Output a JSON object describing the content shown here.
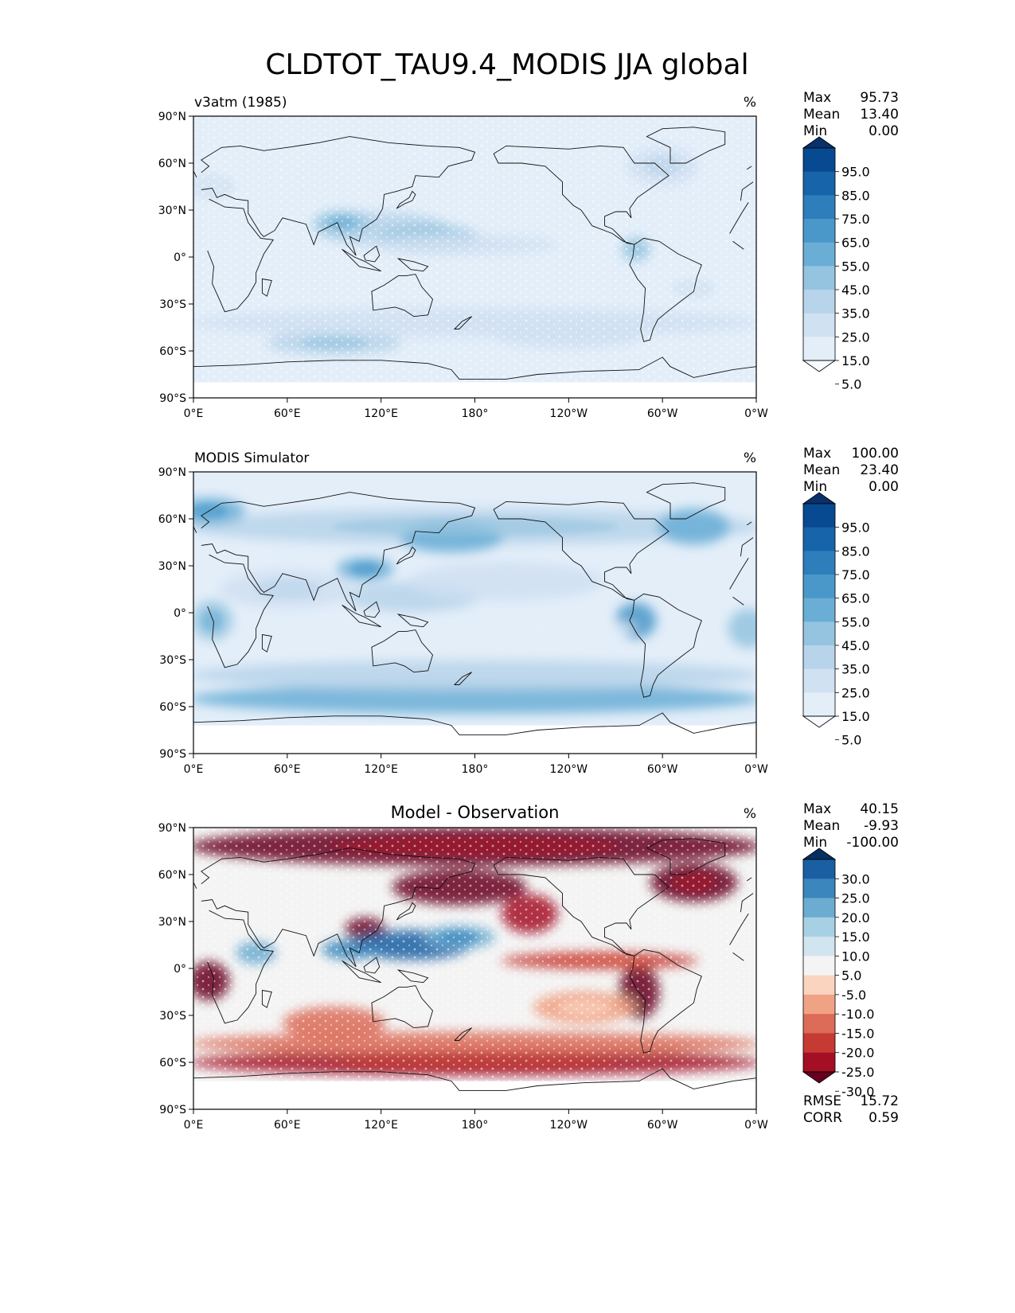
{
  "title": "CLDTOT_TAU9.4_MODIS JJA global",
  "lat_labels": [
    "90°N",
    "60°N",
    "30°N",
    "0°",
    "30°S",
    "60°S",
    "90°S"
  ],
  "lon_labels": [
    "0°E",
    "60°E",
    "120°E",
    "180°",
    "120°W",
    "60°W",
    "0°W"
  ],
  "panels": [
    {
      "id": "model",
      "left_title": "v3atm (1985)",
      "center_title": "",
      "units": "%",
      "stats": [
        {
          "label": "Max",
          "value": "95.73"
        },
        {
          "label": "Mean",
          "value": "13.40"
        },
        {
          "label": "Min",
          "value": "0.00"
        }
      ],
      "colorbar": {
        "ticks": [
          "95.0",
          "85.0",
          "75.0",
          "65.0",
          "55.0",
          "45.0",
          "35.0",
          "25.0",
          "15.0",
          "5.0"
        ],
        "colors": [
          "#f7fbff",
          "#e3eef9",
          "#d0e1f2",
          "#b7d4ea",
          "#94c4df",
          "#6aaed6",
          "#4a98c9",
          "#2e7ebc",
          "#1764ab",
          "#084a91",
          "#08306b"
        ]
      },
      "extra_stats": []
    },
    {
      "id": "obs",
      "left_title": "MODIS Simulator",
      "center_title": "",
      "units": "%",
      "stats": [
        {
          "label": "Max",
          "value": "100.00"
        },
        {
          "label": "Mean",
          "value": "23.40"
        },
        {
          "label": "Min",
          "value": "0.00"
        }
      ],
      "colorbar": {
        "ticks": [
          "95.0",
          "85.0",
          "75.0",
          "65.0",
          "55.0",
          "45.0",
          "35.0",
          "25.0",
          "15.0",
          "5.0"
        ],
        "colors": [
          "#f7fbff",
          "#e3eef9",
          "#d0e1f2",
          "#b7d4ea",
          "#94c4df",
          "#6aaed6",
          "#4a98c9",
          "#2e7ebc",
          "#1764ab",
          "#084a91",
          "#08306b"
        ]
      },
      "extra_stats": []
    },
    {
      "id": "diff",
      "left_title": "",
      "center_title": "Model - Observation",
      "units": "%",
      "stats": [
        {
          "label": "Max",
          "value": "40.15"
        },
        {
          "label": "Mean",
          "value": "-9.93"
        },
        {
          "label": "Min",
          "value": "-100.00"
        }
      ],
      "colorbar": {
        "ticks": [
          "30.0",
          "25.0",
          "20.0",
          "15.0",
          "10.0",
          "5.0",
          "-5.0",
          "-10.0",
          "-15.0",
          "-20.0",
          "-25.0",
          "-30.0"
        ],
        "colors": [
          "#67001f",
          "#a50f25",
          "#c53a33",
          "#dc6b58",
          "#f0a285",
          "#fbd4c0",
          "#f4f4f4",
          "#d1e5f0",
          "#a8d0e4",
          "#6bacd0",
          "#3b86bc",
          "#1b5fa3",
          "#053061"
        ]
      },
      "extra_stats": [
        {
          "label": "RMSE",
          "value": "15.72"
        },
        {
          "label": "CORR",
          "value": "0.59"
        }
      ]
    }
  ]
}
